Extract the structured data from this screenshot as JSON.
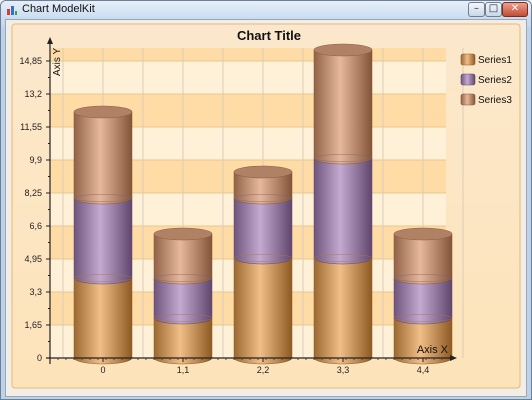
{
  "window": {
    "title": "Chart ModelKit",
    "controls": {
      "minimize": "–",
      "maximize": "□",
      "close": "✕"
    },
    "app_icon": "bar-chart-icon"
  },
  "colors": {
    "series1": "#d4a06a",
    "series2": "#a68cb2",
    "series3": "#c99a7e",
    "band_light": "#fff1d8",
    "band_dark": "#ffdca6"
  },
  "chart_data": {
    "type": "bar",
    "subtype": "stacked-cylinder",
    "title": "Chart Title",
    "xlabel": "Axis X",
    "ylabel": "Axis Y",
    "x": [
      0,
      1.1,
      2.2,
      3.3,
      4.4
    ],
    "x_tick_labels": [
      "0",
      "1,1",
      "2,2",
      "3,3",
      "4,4"
    ],
    "y_tick_labels": [
      "0",
      "1,65",
      "3,3",
      "4,95",
      "6,6",
      "8,25",
      "9,9",
      "11,55",
      "13,2",
      "14,85"
    ],
    "y_ticks": [
      0,
      1.65,
      3.3,
      4.95,
      6.6,
      8.25,
      9.9,
      11.55,
      13.2,
      14.85
    ],
    "ylim": [
      0,
      15.5
    ],
    "series": [
      {
        "name": "Series1",
        "values": [
          4.0,
          2.0,
          5.0,
          5.0,
          2.0
        ]
      },
      {
        "name": "Series2",
        "values": [
          4.0,
          2.0,
          3.0,
          5.0,
          2.0
        ]
      },
      {
        "name": "Series3",
        "values": [
          4.3,
          2.2,
          1.3,
          5.4,
          2.2
        ]
      }
    ],
    "legend": {
      "position": "top-right",
      "entries": [
        "Series1",
        "Series2",
        "Series3"
      ]
    },
    "grid": true
  }
}
